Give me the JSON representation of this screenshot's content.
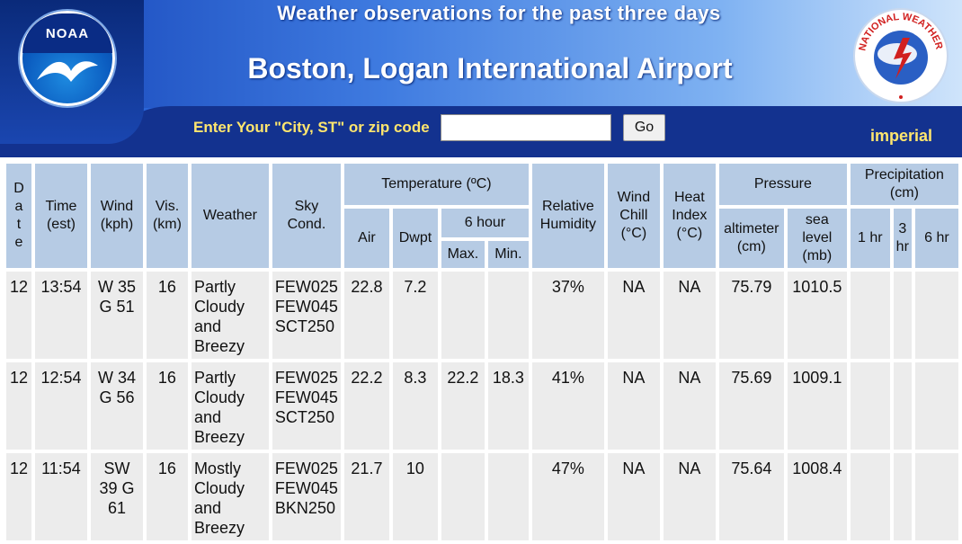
{
  "header": {
    "subtitle": "Weather observations for the past three days",
    "title": "Boston, Logan International Airport",
    "noaa_logo_text": "NOAA",
    "nws_logo_text": "NATIONAL WEATHER SERVICE"
  },
  "search": {
    "label": "Enter Your \"City, ST\" or zip code",
    "value": "",
    "placeholder": "",
    "go_label": "Go"
  },
  "units_link": "imperial",
  "table": {
    "headers": {
      "date_letters": [
        "D",
        "a",
        "t",
        "e"
      ],
      "time": "Time (est)",
      "wind": "Wind (kph)",
      "vis": "Vis. (km)",
      "weather": "Weather",
      "sky": "Sky Cond.",
      "temperature": "Temperature (ºC)",
      "air": "Air",
      "dwpt": "Dwpt",
      "six_hour": "6 hour",
      "max": "Max.",
      "min": "Min.",
      "rh": "Relative Humidity",
      "wind_chill": "Wind Chill (°C)",
      "heat_index": "Heat Index (°C)",
      "pressure": "Pressure",
      "altimeter": "altimeter (cm)",
      "sea_level": "sea level (mb)",
      "precip": "Precipitation (cm)",
      "p1": "1 hr",
      "p3": "3 hr",
      "p6": "6 hr"
    },
    "rows": [
      {
        "date": "12",
        "time": "13:54",
        "wind": "W 35 G 51",
        "vis": "16",
        "weather": "Partly Cloudy and Breezy",
        "sky": "FEW025 FEW045 SCT250",
        "air": "22.8",
        "dwpt": "7.2",
        "max": "",
        "min": "",
        "rh": "37%",
        "wind_chill": "NA",
        "heat_index": "NA",
        "altimeter": "75.79",
        "sea_level": "1010.5",
        "p1": "",
        "p3": "",
        "p6": ""
      },
      {
        "date": "12",
        "time": "12:54",
        "wind": "W 34 G 56",
        "vis": "16",
        "weather": "Partly Cloudy and Breezy",
        "sky": "FEW025 FEW045 SCT250",
        "air": "22.2",
        "dwpt": "8.3",
        "max": "22.2",
        "min": "18.3",
        "rh": "41%",
        "wind_chill": "NA",
        "heat_index": "NA",
        "altimeter": "75.69",
        "sea_level": "1009.1",
        "p1": "",
        "p3": "",
        "p6": ""
      },
      {
        "date": "12",
        "time": "11:54",
        "wind": "SW 39 G 61",
        "vis": "16",
        "weather": "Mostly Cloudy and Breezy",
        "sky": "FEW025 FEW045 BKN250",
        "air": "21.7",
        "dwpt": "10",
        "max": "",
        "min": "",
        "rh": "47%",
        "wind_chill": "NA",
        "heat_index": "NA",
        "altimeter": "75.64",
        "sea_level": "1008.4",
        "p1": "",
        "p3": "",
        "p6": ""
      }
    ]
  },
  "colors": {
    "header_dark": "#13328f",
    "header_light": "#7fb2f2",
    "accent_yellow": "#ffe66e",
    "table_header_bg": "#b6cbe4",
    "table_cell_bg": "#ececec"
  }
}
